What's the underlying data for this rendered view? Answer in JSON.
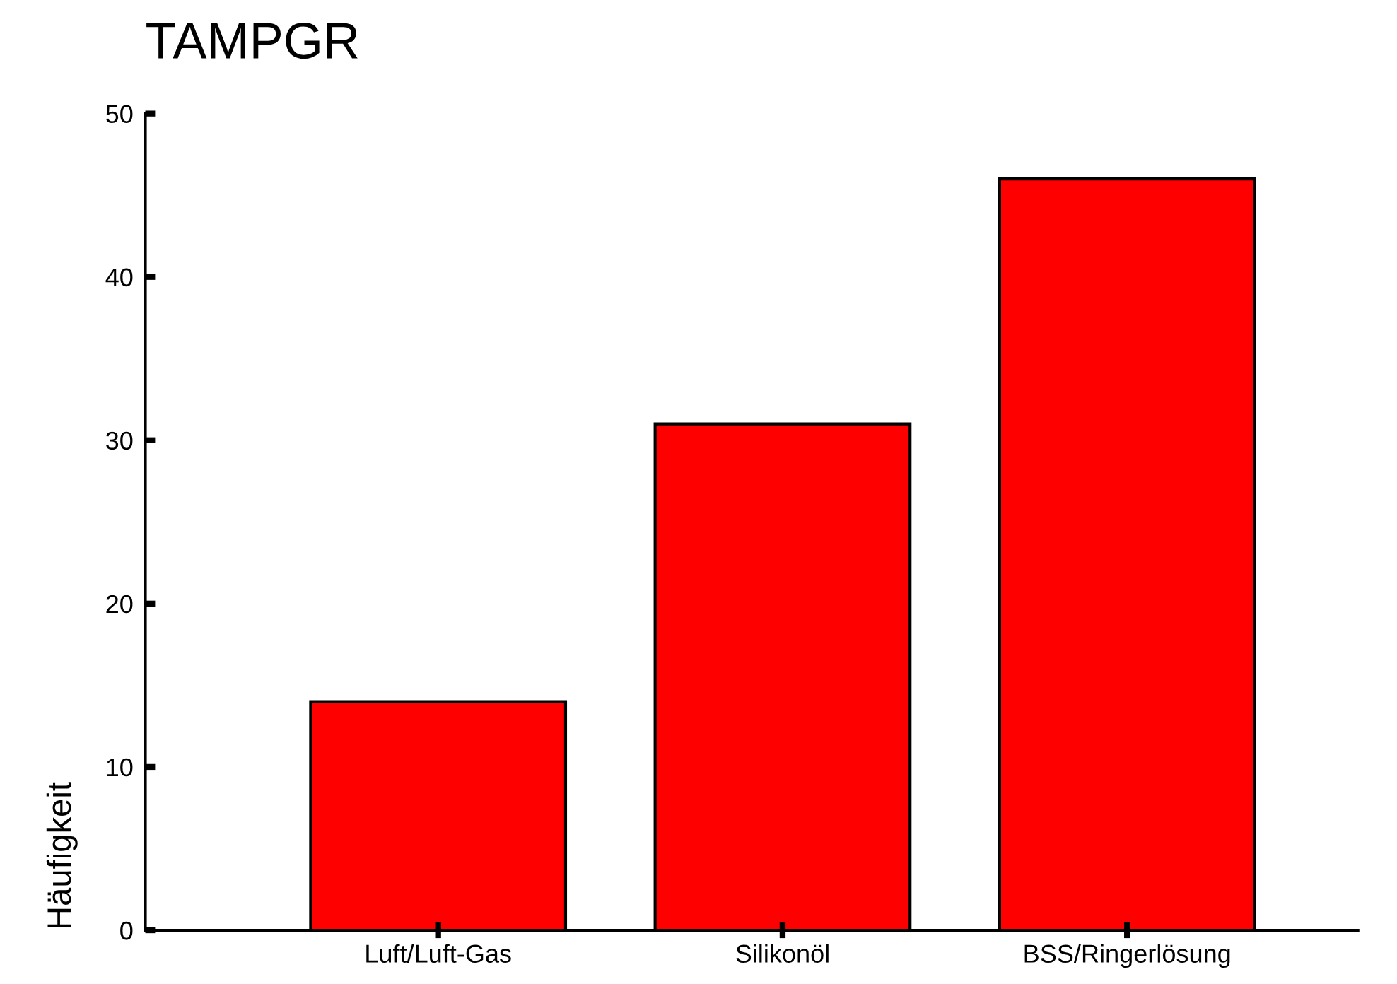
{
  "chart_data": {
    "type": "bar",
    "title": "TAMPGR",
    "ylabel": "Häufigkeit",
    "categories": [
      "Luft/Luft-Gas",
      "Silikonöl",
      "BSS/Ringerlösung"
    ],
    "values": [
      14,
      31,
      46
    ],
    "color": "#ff0000",
    "ylim": [
      0,
      50
    ],
    "yticks": [
      0,
      10,
      20,
      30,
      40,
      50
    ],
    "grid": false,
    "legend": false
  }
}
